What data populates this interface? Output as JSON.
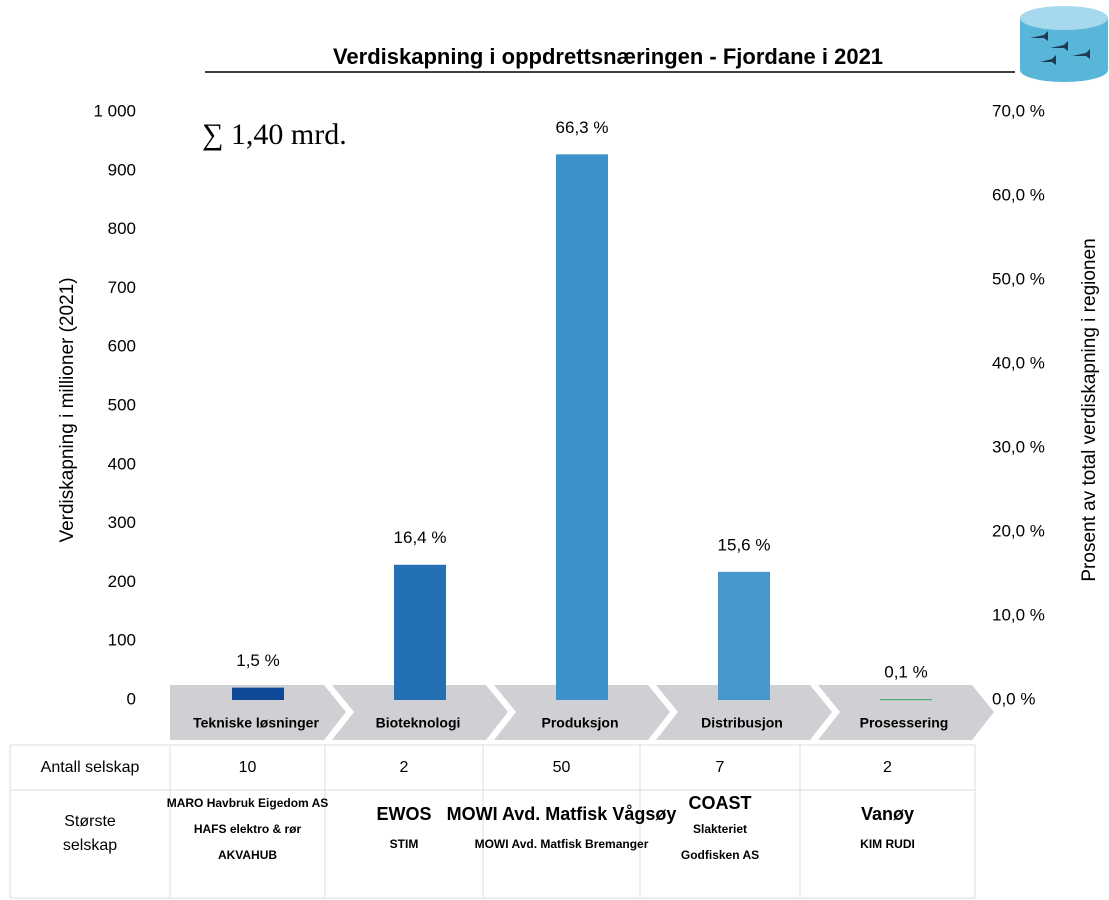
{
  "chart_data": {
    "type": "bar",
    "title": "Verdiskapning i oppdrettsnæringen - Fjordane i 2021",
    "annotation": "∑ 1,40 mrd.",
    "y_label": "Verdiskapning i millioner (2021)",
    "y2_label": "Prosent av total verdiskapning i regionen",
    "categories": [
      "Tekniske løsninger",
      "Bioteknologi",
      "Produksjon",
      "Distribusjon",
      "Prosessering"
    ],
    "values": [
      21,
      230,
      928,
      218,
      1.4
    ],
    "colors": [
      "#0e4a98",
      "#2470b4",
      "#3d91ca",
      "#4597cc",
      "#3aa66a"
    ],
    "shares": [
      1.5,
      16.4,
      66.3,
      15.6,
      0.1
    ],
    "share_labels": [
      "1,5 %",
      "16,4 %",
      "66,3 %",
      "15,6 %",
      "0,1 %"
    ],
    "ylim": [
      0,
      1000
    ],
    "yticks": [
      0,
      100,
      200,
      300,
      400,
      500,
      600,
      700,
      800,
      900,
      {
        "value": 1000,
        "label": "1 000"
      }
    ],
    "y2lim": [
      0,
      70
    ],
    "y2ticks": [
      {
        "value": 0,
        "label": "0,0 %"
      },
      {
        "value": 10,
        "label": "10,0 %"
      },
      {
        "value": 20,
        "label": "20,0 %"
      },
      {
        "value": 30,
        "label": "30,0 %"
      },
      {
        "value": 40,
        "label": "40,0 %"
      },
      {
        "value": 50,
        "label": "50,0 %"
      },
      {
        "value": 60,
        "label": "60,0 %"
      },
      {
        "value": 70,
        "label": "70,0 %"
      }
    ],
    "grid": false
  },
  "table": {
    "count_header": "Antall selskap",
    "counts": [
      "10",
      "2",
      "50",
      "7",
      "2"
    ],
    "companies_header": [
      "Største",
      "selskap"
    ],
    "companies": [
      [
        "MARO Havbruk Eigedom AS",
        "HAFS elektro & rør",
        "AKVAHUB"
      ],
      [
        "EWOS",
        "STIM"
      ],
      [
        "MOWI Avd. Matfisk Vågsøy",
        "MOWI Avd. Matfisk Bremanger"
      ],
      [
        "COAST",
        "Slakteriet",
        "Godfisken AS"
      ],
      [
        "Vanøy",
        "KIM RUDI"
      ]
    ]
  }
}
